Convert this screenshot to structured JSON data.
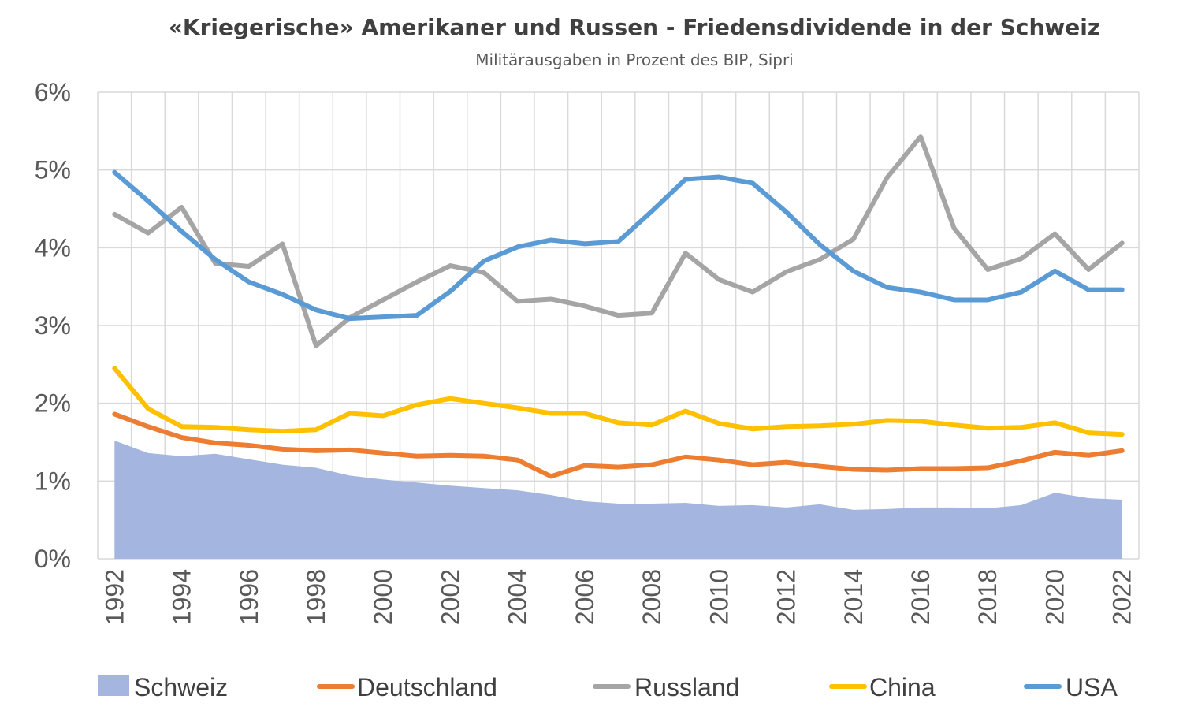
{
  "chart_data": {
    "type": "line",
    "title": "«Kriegerische» Amerikaner und Russen - Friedensdividende in der Schweiz",
    "subtitle": "Militärausgaben in Prozent des BIP, Sipri",
    "xlabel": "",
    "ylabel": "",
    "ylim": [
      0,
      6
    ],
    "y_ticks": [
      "0%",
      "1%",
      "2%",
      "3%",
      "4%",
      "5%",
      "6%"
    ],
    "x_tick_labels": [
      "1992",
      "1994",
      "1996",
      "1998",
      "2000",
      "2002",
      "2004",
      "2006",
      "2008",
      "2010",
      "2012",
      "2014",
      "2016",
      "2018",
      "2020",
      "2022"
    ],
    "x": [
      1992,
      1993,
      1994,
      1995,
      1996,
      1997,
      1998,
      1999,
      2000,
      2001,
      2002,
      2003,
      2004,
      2005,
      2006,
      2007,
      2008,
      2009,
      2010,
      2011,
      2012,
      2013,
      2014,
      2015,
      2016,
      2017,
      2018,
      2019,
      2020,
      2021,
      2022
    ],
    "grid": true,
    "legend_position": "bottom",
    "series": [
      {
        "name": "Schweiz",
        "style": "area",
        "color": "#A4B6E0",
        "values": [
          1.52,
          1.36,
          1.32,
          1.35,
          1.28,
          1.21,
          1.17,
          1.07,
          1.02,
          0.98,
          0.94,
          0.91,
          0.88,
          0.82,
          0.74,
          0.71,
          0.71,
          0.72,
          0.68,
          0.69,
          0.66,
          0.7,
          0.63,
          0.64,
          0.66,
          0.66,
          0.65,
          0.69,
          0.85,
          0.78,
          0.76
        ]
      },
      {
        "name": "Deutschland",
        "style": "line",
        "color": "#ED7D31",
        "values": [
          1.86,
          1.7,
          1.56,
          1.49,
          1.46,
          1.41,
          1.39,
          1.4,
          1.36,
          1.32,
          1.33,
          1.32,
          1.27,
          1.06,
          1.2,
          1.18,
          1.21,
          1.31,
          1.27,
          1.21,
          1.24,
          1.19,
          1.15,
          1.14,
          1.16,
          1.16,
          1.17,
          1.26,
          1.37,
          1.33,
          1.39
        ]
      },
      {
        "name": "Russland",
        "style": "line",
        "color": "#A5A5A5",
        "values": [
          4.43,
          4.19,
          4.52,
          3.8,
          3.76,
          4.05,
          2.74,
          3.1,
          3.33,
          3.56,
          3.77,
          3.68,
          3.31,
          3.34,
          3.25,
          3.13,
          3.16,
          3.93,
          3.59,
          3.43,
          3.69,
          3.85,
          4.11,
          4.9,
          5.43,
          4.25,
          3.72,
          3.86,
          4.18,
          3.72,
          4.06
        ]
      },
      {
        "name": "China",
        "style": "line",
        "color": "#FFC000",
        "values": [
          2.45,
          1.93,
          1.7,
          1.69,
          1.66,
          1.64,
          1.66,
          1.87,
          1.84,
          1.98,
          2.06,
          2.0,
          1.94,
          1.87,
          1.87,
          1.75,
          1.72,
          1.9,
          1.74,
          1.67,
          1.7,
          1.71,
          1.73,
          1.78,
          1.77,
          1.72,
          1.68,
          1.69,
          1.75,
          1.62,
          1.6
        ]
      },
      {
        "name": "USA",
        "style": "line",
        "color": "#5B9BD5",
        "values": [
          4.97,
          4.6,
          4.21,
          3.85,
          3.56,
          3.4,
          3.2,
          3.09,
          3.11,
          3.13,
          3.44,
          3.83,
          4.01,
          4.1,
          4.05,
          4.08,
          4.47,
          4.88,
          4.91,
          4.83,
          4.46,
          4.04,
          3.7,
          3.49,
          3.43,
          3.33,
          3.33,
          3.43,
          3.7,
          3.46,
          3.46
        ]
      }
    ]
  }
}
